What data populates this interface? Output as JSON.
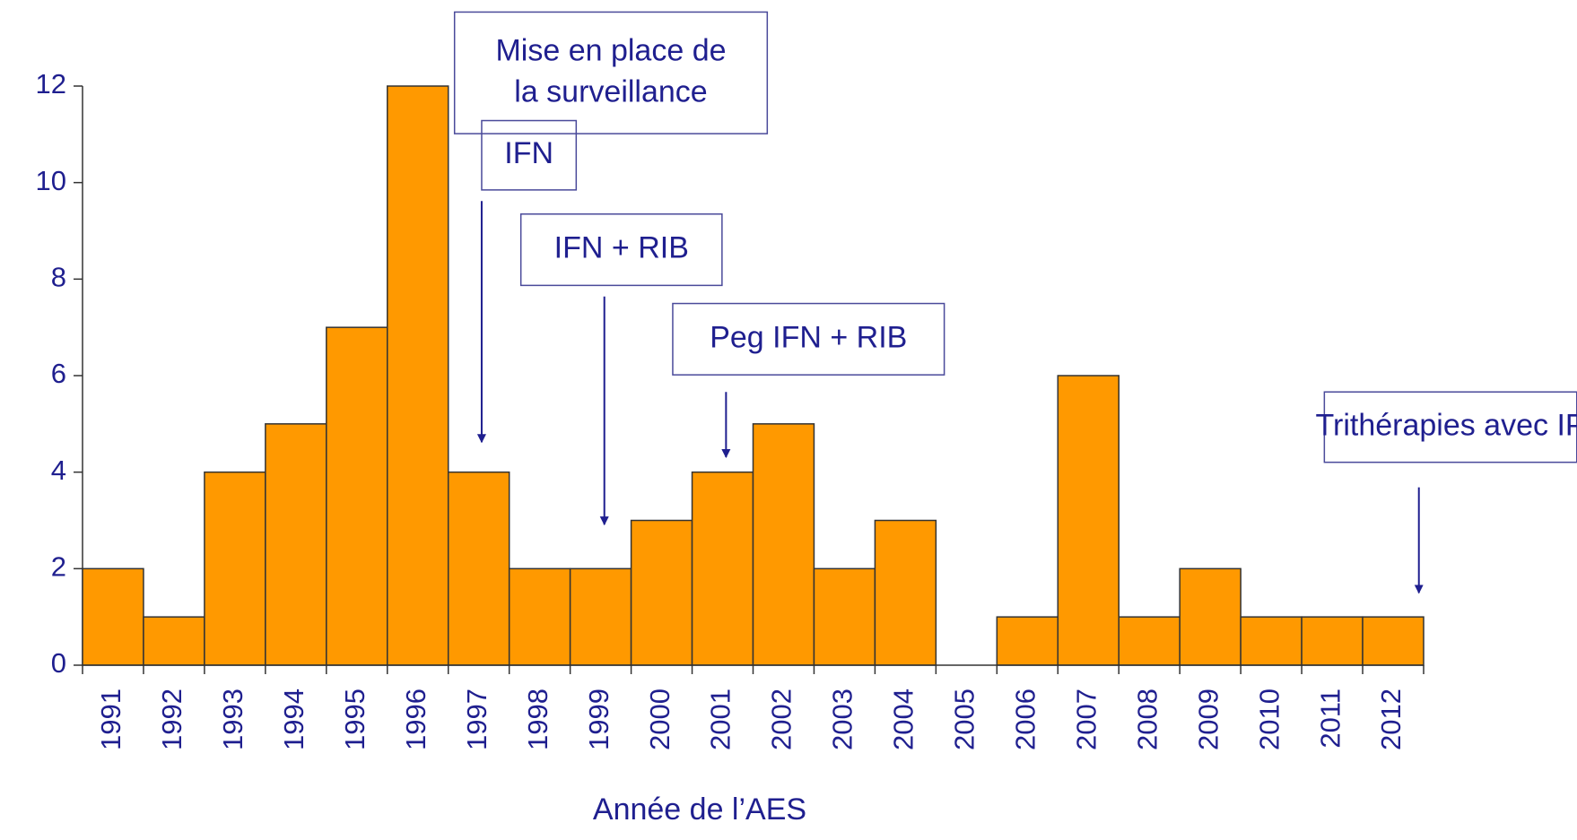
{
  "chart_data": {
    "type": "bar",
    "categories": [
      "1991",
      "1992",
      "1993",
      "1994",
      "1995",
      "1996",
      "1997",
      "1998",
      "1999",
      "2000",
      "2001",
      "2002",
      "2003",
      "2004",
      "2005",
      "2006",
      "2007",
      "2008",
      "2009",
      "2010",
      "2011",
      "2012"
    ],
    "values": [
      2,
      1,
      4,
      5,
      7,
      12,
      4,
      2,
      2,
      3,
      4,
      5,
      2,
      3,
      0,
      1,
      6,
      1,
      2,
      1,
      1,
      1
    ],
    "color": "#ff9900",
    "ylim": [
      0,
      12
    ],
    "yticks": [
      0,
      2,
      4,
      6,
      8,
      10,
      12
    ],
    "x_label": "Année de l’AES",
    "annotations": [
      {
        "lines": [
          "Mise en place de",
          "la surveillance"
        ]
      },
      {
        "lines": [
          "IFN"
        ]
      },
      {
        "lines": [
          "IFN + RIB"
        ]
      },
      {
        "lines": [
          "Peg IFN + RIB"
        ]
      },
      {
        "lines": [
          "Trithérapies avec IP"
        ]
      }
    ]
  }
}
